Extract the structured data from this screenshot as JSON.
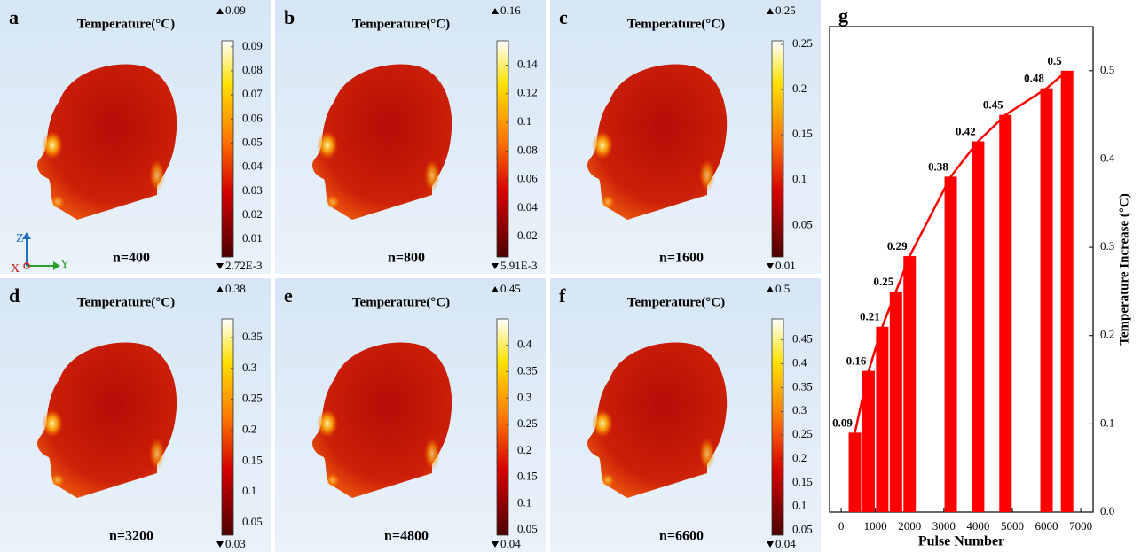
{
  "panels": [
    {
      "label": "a",
      "title": "Temperature(°C)",
      "max_label": "0.09",
      "min_label": "2.72E-3",
      "n_label": "n=400",
      "colorbar": {
        "lim": [
          0.0027,
          0.0925
        ],
        "ticks": [
          0.01,
          0.02,
          0.03,
          0.04,
          0.05,
          0.06,
          0.07,
          0.08,
          0.09
        ]
      }
    },
    {
      "label": "b",
      "title": "Temperature(°C)",
      "max_label": "0.16",
      "min_label": "5.91E-3",
      "n_label": "n=800",
      "colorbar": {
        "lim": [
          0.0059,
          0.157
        ],
        "ticks": [
          0.02,
          0.04,
          0.06,
          0.08,
          0.1,
          0.12,
          0.14
        ]
      }
    },
    {
      "label": "c",
      "title": "Temperature(°C)",
      "max_label": "0.25",
      "min_label": "0.01",
      "n_label": "n=1600",
      "colorbar": {
        "lim": [
          0.015,
          0.254
        ],
        "ticks": [
          0.05,
          0.1,
          0.15,
          0.2,
          0.25
        ]
      }
    },
    {
      "label": "d",
      "title": "Temperature(°C)",
      "max_label": "0.38",
      "min_label": "0.03",
      "n_label": "n=3200",
      "colorbar": {
        "lim": [
          0.03,
          0.38
        ],
        "ticks": [
          0.05,
          0.1,
          0.15,
          0.2,
          0.25,
          0.3,
          0.35
        ]
      }
    },
    {
      "label": "e",
      "title": "Temperature(°C)",
      "max_label": "0.45",
      "min_label": "0.04",
      "n_label": "n=4800",
      "colorbar": {
        "lim": [
          0.04,
          0.45
        ],
        "ticks": [
          0.05,
          0.1,
          0.15,
          0.2,
          0.25,
          0.3,
          0.35,
          0.4
        ]
      }
    },
    {
      "label": "f",
      "title": "Temperature(°C)",
      "max_label": "0.5",
      "min_label": "0.04",
      "n_label": "n=6600",
      "colorbar": {
        "lim": [
          0.04,
          0.494
        ],
        "ticks": [
          0.05,
          0.1,
          0.15,
          0.2,
          0.25,
          0.3,
          0.35,
          0.4,
          0.45
        ]
      }
    }
  ],
  "axes_triad": {
    "z": "Z",
    "x": "X",
    "y": "Y"
  },
  "chart_data": {
    "type": "bar",
    "label": "g",
    "x_label": "Pulse Number",
    "y_label": "Temperature Increase (°C)",
    "x": [
      400,
      800,
      1200,
      1600,
      2000,
      3200,
      4000,
      4800,
      6000,
      6600
    ],
    "values": [
      0.09,
      0.16,
      0.21,
      0.25,
      0.29,
      0.38,
      0.42,
      0.45,
      0.48,
      0.5
    ],
    "color": "#ff0000",
    "line": true,
    "xlim": [
      -340,
      7360
    ],
    "xticks": [
      0,
      1000,
      2000,
      3000,
      4000,
      5000,
      6000,
      7000
    ],
    "ylim": [
      0,
      0.55
    ],
    "yticks": [
      {
        "value": 0,
        "label": "0.0"
      },
      0.1,
      0.2,
      0.3,
      0.4,
      0.5
    ],
    "y_axis_side": "right"
  }
}
